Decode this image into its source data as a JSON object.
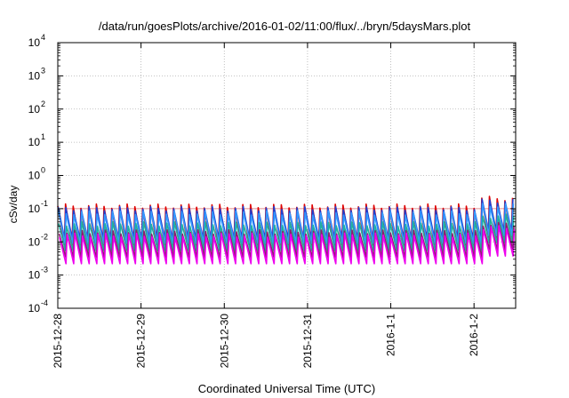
{
  "chart_data": {
    "type": "line",
    "title": "/data/run/goesPlots/archive/2016-01-02/11:00/flux/../bryn/5daysMars.plot",
    "xlabel": "Coordinated Universal Time (UTC)",
    "ylabel": "cSv/day",
    "yscale": "log",
    "ylim": [
      0.0001,
      10000
    ],
    "yticks": [
      {
        "exp": "-4"
      },
      {
        "exp": "-3"
      },
      {
        "exp": "-2"
      },
      {
        "exp": "-1"
      },
      {
        "exp": "0"
      },
      {
        "exp": "1"
      },
      {
        "exp": "2"
      },
      {
        "exp": "3"
      },
      {
        "exp": "4"
      }
    ],
    "xlim_days": [
      0,
      5.5
    ],
    "xticks": [
      "2015-12-28",
      "2015-12-29",
      "2015-12-30",
      "2015-12-31",
      "2016-1-1",
      "2016-1-2"
    ],
    "grid": true,
    "reference_line": {
      "y": 0.1,
      "color": "#e07070"
    },
    "series": [
      {
        "color": "#dd0000",
        "peak": 0.12,
        "trough": 0.008
      },
      {
        "color": "#1f3fd0",
        "peak": 0.1,
        "trough": 0.012
      },
      {
        "color": "#3399ff",
        "peak": 0.075,
        "trough": 0.009
      },
      {
        "color": "#20b0a0",
        "peak": 0.035,
        "trough": 0.0055
      },
      {
        "color": "#8a2070",
        "peak": 0.02,
        "trough": 0.0035
      },
      {
        "color": "#ee00ee",
        "peak": 0.016,
        "trough": 0.0022
      }
    ],
    "cycles_per_day": 10.8,
    "late_rise": {
      "from_day": 5.05,
      "factor": 1.7
    }
  }
}
